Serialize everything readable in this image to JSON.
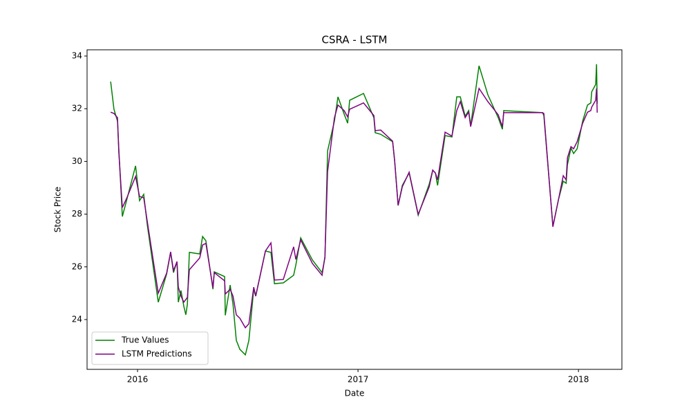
{
  "chart_data": {
    "type": "line",
    "title": "CSRA - LSTM",
    "x_label": "Date",
    "y_label": "Stock Price",
    "x": [
      2015.878,
      2015.893,
      2015.909,
      2015.915,
      2015.931,
      2015.95,
      2015.991,
      2016.009,
      2016.028,
      2016.044,
      2016.094,
      2016.132,
      2016.15,
      2016.163,
      2016.179,
      2016.185,
      2016.197,
      2016.21,
      2016.219,
      2016.226,
      2016.235,
      2016.282,
      2016.295,
      2016.31,
      2016.342,
      2016.348,
      2016.395,
      2016.398,
      2016.42,
      2016.433,
      2016.448,
      2016.464,
      2016.489,
      2016.505,
      2016.527,
      2016.536,
      2016.58,
      2016.605,
      2016.621,
      2016.661,
      2016.708,
      2016.718,
      2016.74,
      2016.793,
      2016.837,
      2016.85,
      2016.862,
      2016.893,
      2016.909,
      2016.937,
      2016.953,
      2016.962,
      2017.025,
      2017.072,
      2017.078,
      2017.103,
      2017.157,
      2017.166,
      2017.182,
      2017.201,
      2017.232,
      2017.273,
      2017.323,
      2017.339,
      2017.351,
      2017.361,
      2017.395,
      2017.426,
      2017.448,
      2017.464,
      2017.486,
      2017.502,
      2017.511,
      2017.549,
      2017.589,
      2017.636,
      2017.655,
      2017.661,
      2017.837,
      2017.843,
      2017.884,
      2017.909,
      2017.931,
      2017.944,
      2017.95,
      2017.966,
      2017.978,
      2017.994,
      2018.019,
      2018.041,
      2018.056,
      2018.06,
      2018.078,
      2018.082,
      2018.085
    ],
    "series": [
      {
        "name": "True Values",
        "color": "#008000",
        "values": [
          33.03,
          31.98,
          31.53,
          30.48,
          27.91,
          28.51,
          29.83,
          28.51,
          28.75,
          27.6,
          24.66,
          25.73,
          26.55,
          25.78,
          26.2,
          24.66,
          25.1,
          24.5,
          24.18,
          24.58,
          26.55,
          26.49,
          27.15,
          26.99,
          25.15,
          25.81,
          25.63,
          24.16,
          25.31,
          24.58,
          23.21,
          22.87,
          22.66,
          23.21,
          25.15,
          24.89,
          26.6,
          26.55,
          25.36,
          25.39,
          25.68,
          26.07,
          27.1,
          26.26,
          25.78,
          26.34,
          30.4,
          31.53,
          32.45,
          31.8,
          31.45,
          32.32,
          32.58,
          31.66,
          31.09,
          31.03,
          30.75,
          30.04,
          28.33,
          29.09,
          29.56,
          27.96,
          29.14,
          29.67,
          29.56,
          29.09,
          30.98,
          30.93,
          32.45,
          32.45,
          31.72,
          31.93,
          31.35,
          33.63,
          32.53,
          31.66,
          31.22,
          31.93,
          31.85,
          31.74,
          27.54,
          28.54,
          29.25,
          29.17,
          29.88,
          30.51,
          30.3,
          30.48,
          31.53,
          32.14,
          32.22,
          32.64,
          32.92,
          33.69,
          32.19
        ]
      },
      {
        "name": "LSTM Predictions",
        "color": "#800080",
        "values": [
          31.87,
          31.82,
          31.66,
          30.35,
          28.25,
          28.59,
          29.43,
          28.67,
          28.62,
          27.73,
          25.0,
          25.76,
          26.57,
          25.86,
          26.2,
          25.23,
          24.89,
          24.66,
          24.76,
          24.84,
          25.89,
          26.34,
          26.83,
          26.89,
          25.21,
          25.78,
          25.47,
          24.97,
          25.15,
          24.89,
          24.18,
          24.05,
          23.69,
          23.84,
          25.23,
          24.89,
          26.6,
          26.91,
          25.5,
          25.52,
          26.76,
          26.28,
          27.02,
          26.13,
          25.68,
          26.39,
          29.62,
          31.66,
          32.14,
          31.93,
          31.69,
          31.98,
          32.22,
          31.74,
          31.17,
          31.19,
          30.77,
          30.04,
          28.33,
          29.04,
          29.59,
          27.99,
          29.04,
          29.67,
          29.56,
          29.3,
          31.11,
          30.96,
          31.93,
          32.27,
          31.66,
          31.87,
          31.32,
          32.77,
          32.27,
          31.77,
          31.32,
          31.85,
          31.85,
          31.82,
          27.52,
          28.54,
          29.46,
          29.3,
          30.14,
          30.56,
          30.48,
          30.75,
          31.45,
          31.87,
          31.93,
          32.06,
          32.32,
          32.77,
          31.85
        ]
      }
    ],
    "xlim": [
      2015.771,
      2018.197
    ],
    "xticks": [
      2016,
      2017,
      2018
    ],
    "ylim": [
      22.11,
      34.236
    ],
    "yticks": [
      24,
      26,
      28,
      30,
      32,
      34
    ],
    "legend": "lower left"
  }
}
